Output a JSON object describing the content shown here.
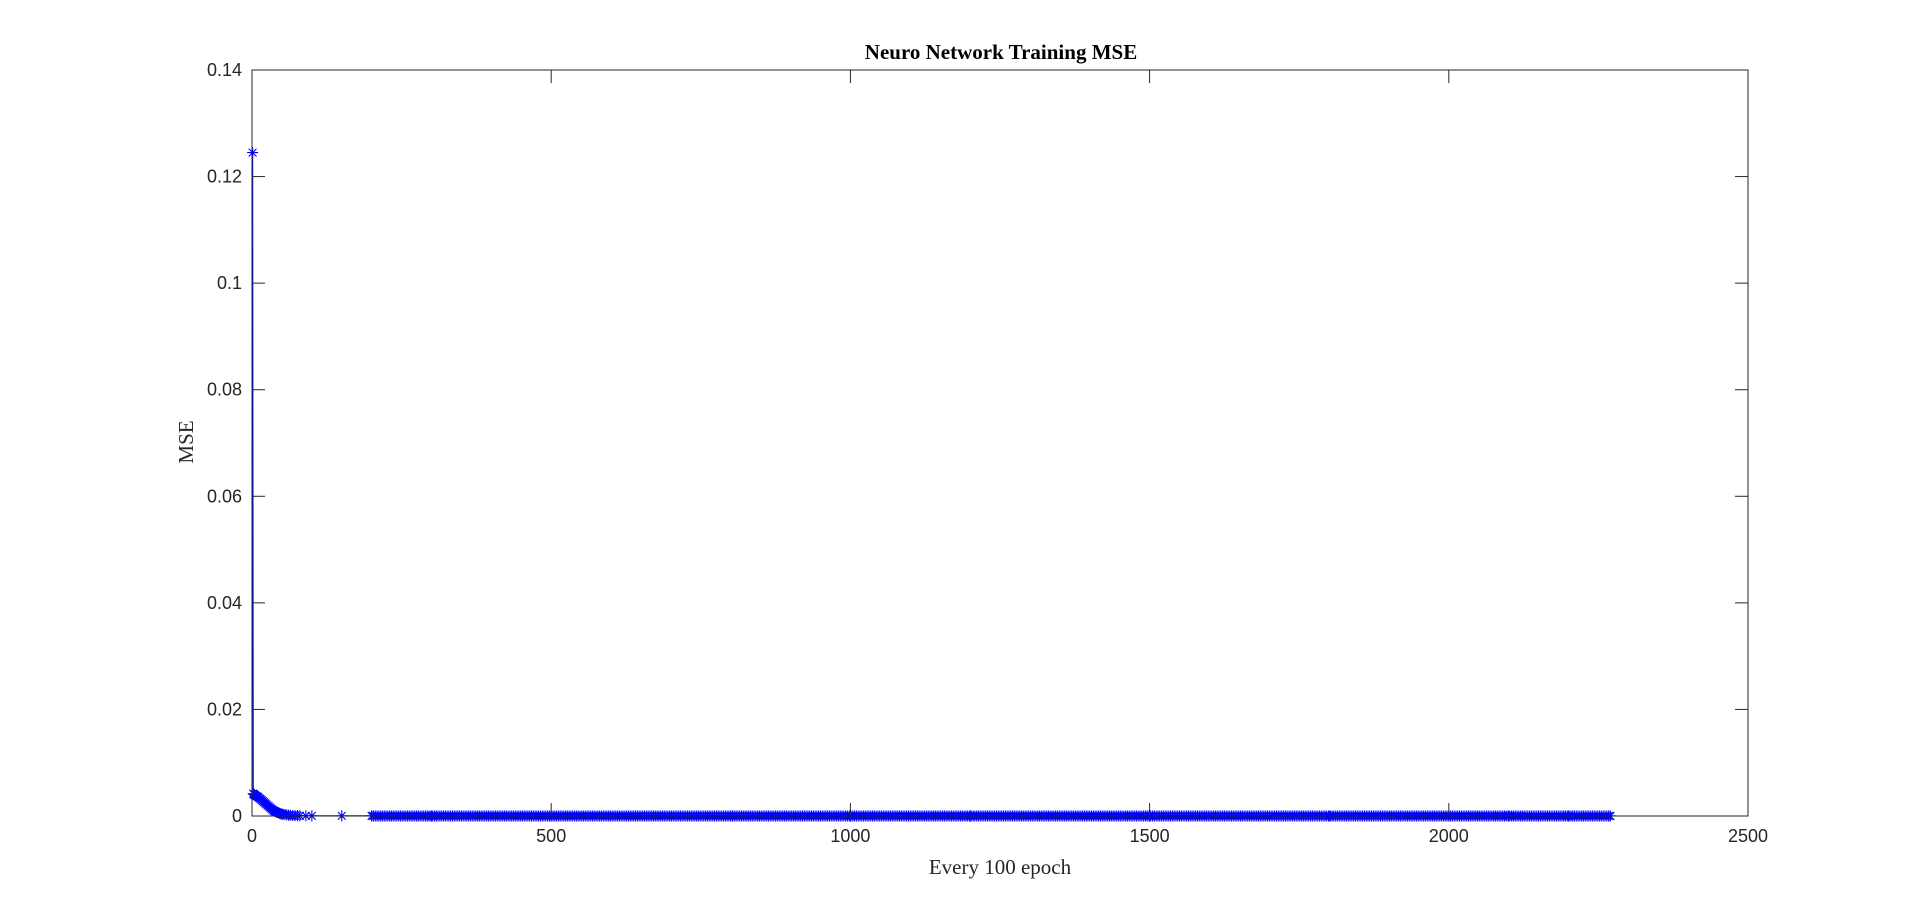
{
  "chart_data": {
    "type": "line",
    "title": "Neuro Network Training MSE",
    "xlabel": "Every 100 epoch",
    "ylabel": "MSE",
    "xlim": [
      0,
      2500
    ],
    "ylim": [
      0,
      0.14
    ],
    "xticks": [
      0,
      500,
      1000,
      1500,
      2000,
      2500
    ],
    "yticks": [
      0,
      0.02,
      0.04,
      0.06,
      0.08,
      0.1,
      0.12,
      0.14
    ],
    "xtick_labels": [
      "0",
      "500",
      "1000",
      "1500",
      "2000",
      "2500"
    ],
    "ytick_labels": [
      "0",
      "0.02",
      "0.04",
      "0.06",
      "0.08",
      "0.1",
      "0.12",
      "0.14"
    ],
    "grid": false,
    "marker": "asterisk",
    "series": [
      {
        "color": "#0000ff",
        "n_points": 2270,
        "x": [
          1,
          2,
          3,
          4,
          5,
          6,
          8,
          10,
          12,
          14,
          16,
          18,
          20,
          22,
          24,
          26,
          28,
          30,
          32,
          34,
          36,
          38,
          40,
          42,
          44,
          46,
          48,
          50,
          52,
          55,
          58,
          61,
          64,
          68,
          72,
          76,
          80,
          90,
          100,
          150,
          200,
          300,
          500,
          800,
          1000,
          1200,
          1500,
          1800,
          2000,
          2100,
          2200,
          2270
        ],
        "y": [
          0.1245,
          0.0042,
          0.0041,
          0.004,
          0.0039,
          0.0038,
          0.0037,
          0.0036,
          0.0034,
          0.0032,
          0.003,
          0.0028,
          0.0026,
          0.0024,
          0.0022,
          0.002,
          0.0018,
          0.0016,
          0.0014,
          0.0012,
          0.001,
          0.0009,
          0.0008,
          0.0007,
          0.0006,
          0.0005,
          0.0004,
          0.00035,
          0.0003,
          0.00025,
          0.0002,
          0.00016,
          0.00013,
          0.0001,
          8e-05,
          6e-05,
          5e-05,
          4e-05,
          3e-05,
          2e-05,
          2e-05,
          1e-05,
          1e-05,
          1e-05,
          1e-05,
          1e-05,
          1e-05,
          1e-05,
          1e-05,
          1e-05,
          1e-05,
          1e-05
        ]
      }
    ]
  }
}
